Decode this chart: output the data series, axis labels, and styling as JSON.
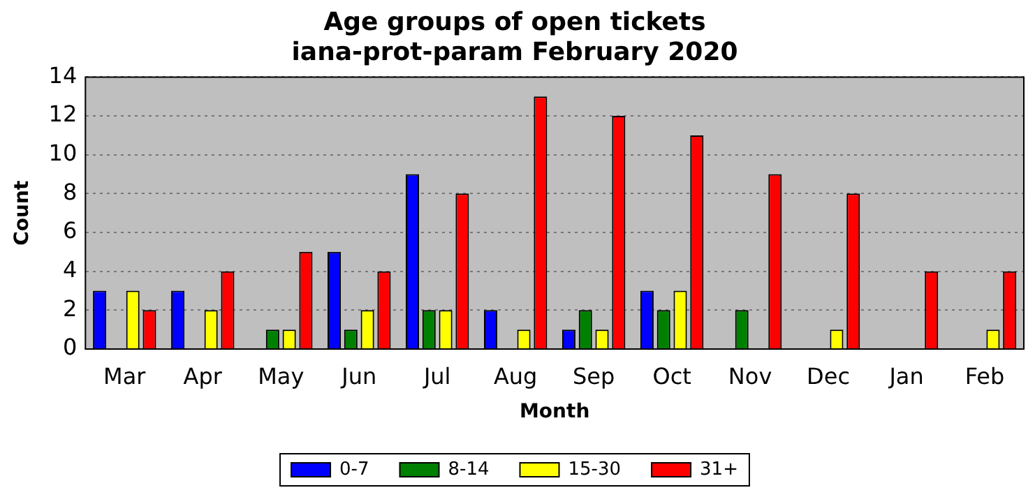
{
  "chart_data": {
    "type": "bar",
    "title": "Age groups of open tickets\niana-prot-param February 2020",
    "xlabel": "Month",
    "ylabel": "Count",
    "categories": [
      "Mar",
      "Apr",
      "May",
      "Jun",
      "Jul",
      "Aug",
      "Sep",
      "Oct",
      "Nov",
      "Dec",
      "Jan",
      "Feb"
    ],
    "series": [
      {
        "name": "0-7",
        "color": "#0000ff",
        "values": [
          3,
          3,
          0,
          5,
          9,
          2,
          1,
          3,
          0,
          0,
          0,
          0
        ]
      },
      {
        "name": "8-14",
        "color": "#008000",
        "values": [
          0,
          0,
          1,
          1,
          2,
          0,
          2,
          2,
          2,
          0,
          0,
          0
        ]
      },
      {
        "name": "15-30",
        "color": "#ffff00",
        "values": [
          3,
          2,
          1,
          2,
          2,
          1,
          1,
          3,
          0,
          1,
          0,
          1
        ]
      },
      {
        "name": "31+",
        "color": "#ff0000",
        "values": [
          2,
          4,
          5,
          4,
          8,
          13,
          12,
          11,
          9,
          8,
          4,
          4
        ]
      }
    ],
    "ylim": [
      0,
      14
    ],
    "yticks": [
      0,
      2,
      4,
      6,
      8,
      10,
      12,
      14
    ],
    "grid": "y",
    "legend": "bottom"
  }
}
